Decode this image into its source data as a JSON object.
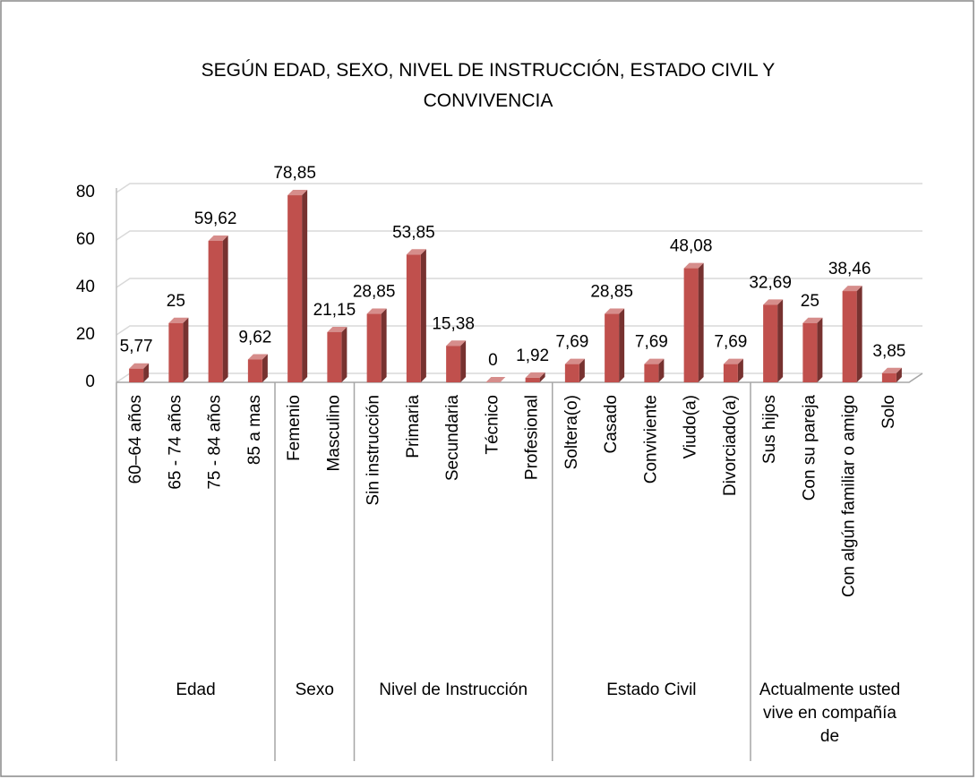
{
  "chart_data": {
    "type": "bar3d",
    "title": "SEGÚN EDAD, SEXO, NIVEL DE INSTRUCCIÓN, ESTADO CIVIL Y CONVIVENCIA",
    "categories": [
      "60–64 años",
      "65 - 74 años",
      "75 - 84 años",
      "85 a mas",
      "Femenio",
      "Masculino",
      "Sin instrucción",
      "Primaria",
      "Secundaria",
      "Técnico",
      "Profesional",
      "Soltera(o)",
      "Casado",
      "Conviviente",
      "Viudo(a)",
      "Divorciado(a)",
      "Sus hijos",
      "Con  su pareja",
      "Con algún familiar o amigo",
      "Solo"
    ],
    "groups": [
      {
        "name": "Edad",
        "size": 4
      },
      {
        "name": "Sexo",
        "size": 2
      },
      {
        "name": "Nivel de Instrucción",
        "size": 5
      },
      {
        "name": "Estado Civil",
        "size": 5
      },
      {
        "name": "Actualmente usted vive en compañía de",
        "size": 4
      }
    ],
    "values": [
      5.77,
      25,
      59.62,
      9.62,
      78.85,
      21.15,
      28.85,
      53.85,
      15.38,
      0,
      1.92,
      7.69,
      28.85,
      7.69,
      48.08,
      7.69,
      32.69,
      25,
      38.46,
      3.85
    ],
    "value_labels": [
      "5,77",
      "25",
      "59,62",
      "9,62",
      "78,85",
      "21,15",
      "28,85",
      "53,85",
      "15,38",
      "0",
      "1,92",
      "7,69",
      "28,85",
      "7,69",
      "48,08",
      "7,69",
      "32,69",
      "25",
      "38,46",
      "3,85"
    ],
    "color": "#c0504d",
    "ylim": [
      0,
      80
    ],
    "yticks": [
      0,
      20,
      40,
      60,
      80
    ],
    "grid": true
  }
}
